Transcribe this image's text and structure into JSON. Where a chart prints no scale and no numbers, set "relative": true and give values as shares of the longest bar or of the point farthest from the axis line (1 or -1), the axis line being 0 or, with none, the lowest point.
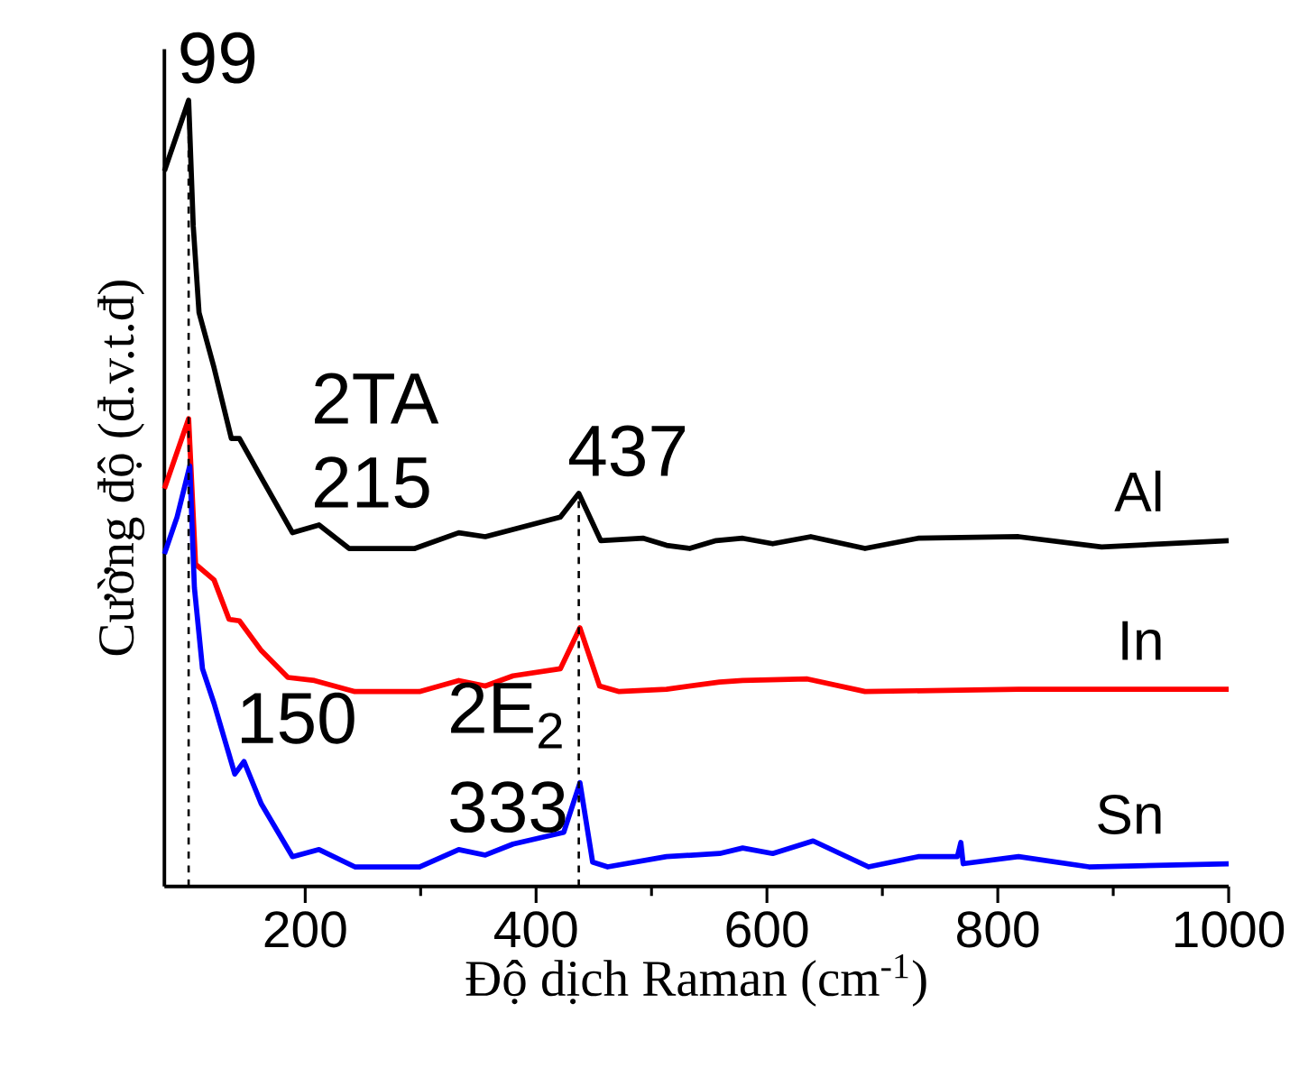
{
  "chart_data": {
    "type": "line",
    "relative": true,
    "xlabel": "Độ dịch Raman (cm$^{-1}$)",
    "ylabel": "Cường độ (đ.v.t.đ)",
    "xlim": [
      78,
      1000
    ],
    "xticks": [
      200,
      400,
      600,
      800,
      1000
    ],
    "legend": false,
    "grid": false,
    "series": [
      {
        "name": "Al",
        "color": "#000000",
        "x": [
          78,
          99,
          103,
          108,
          121,
          136,
          143,
          162,
          189,
          212,
          238,
          295,
          333,
          356,
          421,
          437,
          456,
          493,
          513,
          533,
          556,
          579,
          605,
          638,
          685,
          731,
          818,
          890,
          1000
        ],
        "values": [
          0.91,
          1.0,
          0.84,
          0.73,
          0.66,
          0.57,
          0.57,
          0.52,
          0.45,
          0.46,
          0.43,
          0.43,
          0.45,
          0.445,
          0.47,
          0.5,
          0.44,
          0.443,
          0.434,
          0.43,
          0.44,
          0.443,
          0.436,
          0.445,
          0.43,
          0.443,
          0.445,
          0.432,
          0.44
        ]
      },
      {
        "name": "In",
        "color": "#ff0000",
        "x": [
          78,
          99,
          105,
          121,
          134,
          143,
          162,
          185,
          208,
          243,
          299,
          333,
          356,
          380,
          421,
          438,
          455,
          472,
          513,
          559,
          579,
          635,
          685,
          818,
          1000
        ],
        "values": [
          0.506,
          0.595,
          0.41,
          0.39,
          0.34,
          0.338,
          0.3,
          0.266,
          0.262,
          0.248,
          0.248,
          0.262,
          0.255,
          0.268,
          0.277,
          0.329,
          0.255,
          0.248,
          0.251,
          0.26,
          0.262,
          0.264,
          0.248,
          0.251,
          0.251
        ]
      },
      {
        "name": "Sn",
        "color": "#0000ff",
        "x": [
          78,
          89,
          100,
          104,
          111,
          121,
          139,
          147,
          162,
          189,
          212,
          243,
          299,
          333,
          356,
          380,
          424,
          438,
          449,
          462,
          513,
          559,
          579,
          605,
          640,
          688,
          731,
          765,
          768,
          770,
          818,
          879,
          1000
        ],
        "values": [
          0.423,
          0.47,
          0.535,
          0.38,
          0.277,
          0.233,
          0.143,
          0.159,
          0.105,
          0.038,
          0.047,
          0.025,
          0.025,
          0.047,
          0.04,
          0.054,
          0.069,
          0.132,
          0.031,
          0.025,
          0.038,
          0.042,
          0.049,
          0.042,
          0.058,
          0.025,
          0.038,
          0.038,
          0.056,
          0.029,
          0.038,
          0.025,
          0.029
        ]
      }
    ],
    "ref_lines": [
      {
        "axis": "x",
        "value": 99,
        "color": "#000000",
        "line_style": "dashed"
      },
      {
        "axis": "x",
        "value": 437,
        "color": "#000000",
        "line_style": "dashed"
      }
    ],
    "annotations": [
      {
        "text": "99",
        "x": 99,
        "y": 1.0
      },
      {
        "text": "215",
        "x": 215,
        "y": 0.46
      },
      {
        "text": "2TA",
        "x": 215,
        "y": 0.46
      },
      {
        "text": "437",
        "x": 437,
        "y": 0.5
      },
      {
        "text": "150",
        "x": 150,
        "y": 0.16
      },
      {
        "text": "333",
        "x": 333,
        "y": 0.047
      },
      {
        "text": "2E$_{2}$",
        "x": 333,
        "y": 0.047
      }
    ]
  }
}
